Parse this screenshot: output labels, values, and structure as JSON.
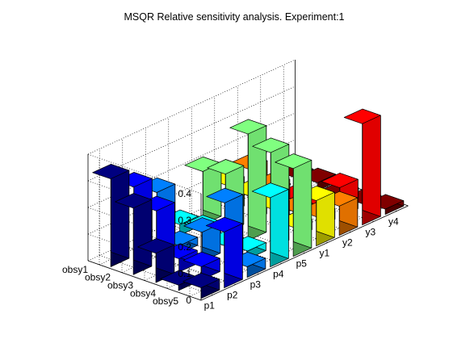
{
  "window": {
    "background": "#ffffff"
  },
  "chart_data": {
    "type": "bar3",
    "title": "MSQR Relative sensitivity analysis. Experiment:1",
    "xlabel": "",
    "ylabel": "",
    "zlabel": "",
    "zlim": [
      0,
      0.4
    ],
    "zticks": [
      "0",
      "0.1",
      "0.2",
      "0.3",
      "0.4"
    ],
    "grid": true,
    "colormap": "jet",
    "columns": [
      "p1",
      "p2",
      "p3",
      "p4",
      "p5",
      "y1",
      "y2",
      "y3",
      "y4"
    ],
    "rows": [
      "obsy1",
      "obsy2",
      "obsy3",
      "obsy4",
      "obsy5"
    ],
    "values": [
      [
        0.33,
        0.26,
        0.2,
        0.04,
        0.2,
        0.11,
        0.13,
        0.005,
        0.02
      ],
      [
        0.25,
        0.2,
        0.03,
        0.05,
        0.22,
        0.1,
        0.09,
        0.005,
        0.03
      ],
      [
        0.11,
        0.05,
        0.11,
        0.02,
        0.4,
        0.08,
        0.03,
        0.005,
        0.01
      ],
      [
        0.02,
        0.05,
        0.25,
        0.03,
        0.36,
        0.04,
        0.04,
        0.11,
        0.01
      ],
      [
        0.04,
        0.21,
        0.04,
        0.26,
        0.33,
        0.17,
        0.11,
        0.38,
        0.02
      ]
    ]
  }
}
